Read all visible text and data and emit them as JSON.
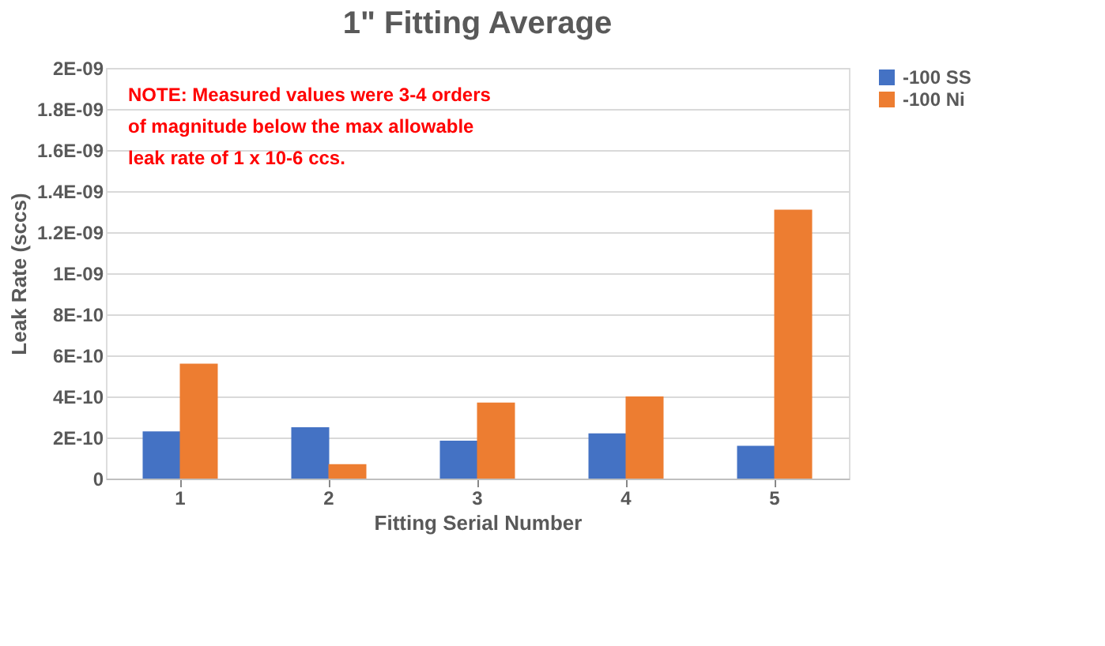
{
  "chart_data": {
    "type": "bar",
    "title": "1\" Fitting Average",
    "xlabel": "Fitting Serial Number",
    "ylabel": "Leak Rate (sccs)",
    "categories": [
      "1",
      "2",
      "3",
      "4",
      "5"
    ],
    "series": [
      {
        "name": "-100 SS",
        "color": "#4472c4",
        "values": [
          2.3e-10,
          2.5e-10,
          1.85e-10,
          2.2e-10,
          1.6e-10
        ]
      },
      {
        "name": "-100 Ni",
        "color": "#ed7d31",
        "values": [
          5.6e-10,
          7e-11,
          3.7e-10,
          4e-10,
          1.31e-09
        ]
      }
    ],
    "ylim": [
      0,
      2e-09
    ],
    "yticks": [
      0,
      {
        "value": 2e-10,
        "label": "2E-10"
      },
      {
        "value": 4e-10,
        "label": "4E-10"
      },
      {
        "value": 6e-10,
        "label": "6E-10"
      },
      {
        "value": 8e-10,
        "label": "8E-10"
      },
      {
        "value": 1e-09,
        "label": "1E-09"
      },
      {
        "value": 1.2e-09,
        "label": "1.2E-09"
      },
      {
        "value": 1.4e-09,
        "label": "1.4E-09"
      },
      {
        "value": 1.6e-09,
        "label": "1.6E-09"
      },
      {
        "value": 1.8e-09,
        "label": "1.8E-09"
      },
      {
        "value": 2e-09,
        "label": "2E-09"
      }
    ],
    "grid": "y",
    "legend": "right",
    "annotations": [
      "NOTE: Measured values were 3-4 orders of magnitude below the max allowable leak rate of 1 x 10-6 ccs."
    ]
  }
}
